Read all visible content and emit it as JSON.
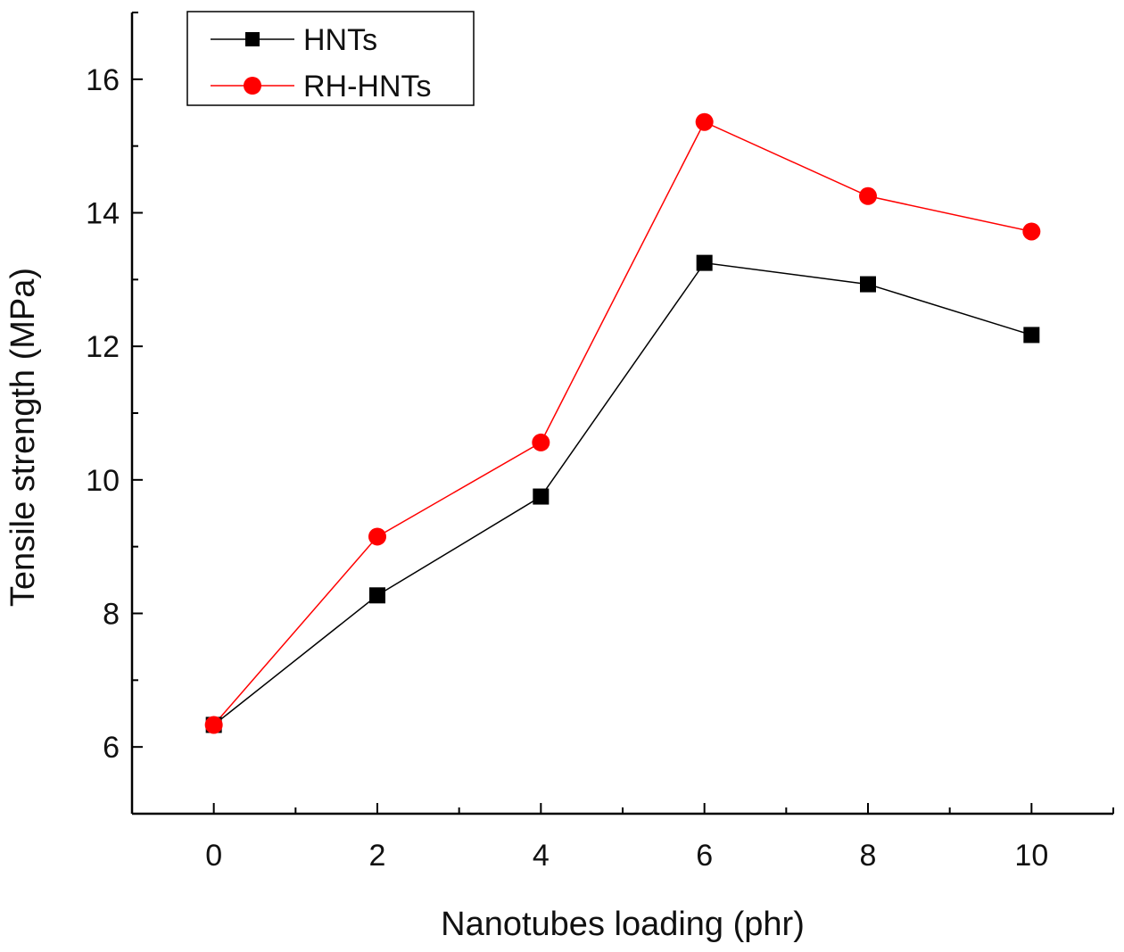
{
  "chart_data": {
    "type": "line",
    "xlabel": "Nanotubes loading (phr)",
    "ylabel": "Tensile strength (MPa)",
    "xlim": [
      -1,
      11
    ],
    "ylim": [
      5,
      17
    ],
    "x_ticks": [
      0,
      2,
      4,
      6,
      8,
      10
    ],
    "y_ticks": [
      6,
      8,
      10,
      12,
      14,
      16
    ],
    "x_tick_labels": [
      "0",
      "2",
      "4",
      "6",
      "8",
      "10"
    ],
    "y_tick_labels": [
      "6",
      "8",
      "10",
      "12",
      "14",
      "16"
    ],
    "x": [
      0,
      2,
      4,
      6,
      8,
      10
    ],
    "series": [
      {
        "name": "HNTs",
        "values": [
          6.33,
          8.27,
          9.75,
          13.25,
          12.93,
          12.17
        ],
        "color": "#000000",
        "marker": "square"
      },
      {
        "name": "RH-HNTs",
        "values": [
          6.33,
          9.15,
          10.56,
          15.36,
          14.25,
          13.72
        ],
        "color": "#ff0000",
        "marker": "circle"
      }
    ],
    "legend_position": "top-left",
    "grid": false
  }
}
